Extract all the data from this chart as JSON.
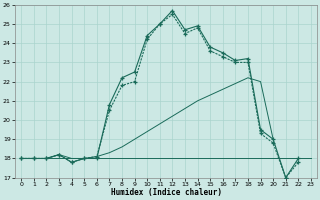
{
  "xlabel": "Humidex (Indice chaleur)",
  "bg_color": "#cce8e4",
  "grid_color": "#aad4ce",
  "line_color": "#1a6b5a",
  "xlim": [
    -0.5,
    23.5
  ],
  "ylim": [
    17,
    26
  ],
  "xticks": [
    0,
    1,
    2,
    3,
    4,
    5,
    6,
    7,
    8,
    9,
    10,
    11,
    12,
    13,
    14,
    15,
    16,
    17,
    18,
    19,
    20,
    21,
    22,
    23
  ],
  "yticks": [
    17,
    18,
    19,
    20,
    21,
    22,
    23,
    24,
    25,
    26
  ],
  "line_flat_x": [
    0,
    1,
    2,
    3,
    4,
    5,
    6,
    7,
    8,
    9,
    10,
    11,
    12,
    13,
    14,
    15,
    16,
    17,
    18,
    19,
    20,
    21,
    22,
    23
  ],
  "line_flat_y": [
    18,
    18,
    18,
    18,
    18,
    18,
    18,
    18,
    18,
    18,
    18,
    18,
    18,
    18,
    18,
    18,
    18,
    18,
    18,
    18,
    18,
    18,
    18,
    18
  ],
  "line_slow_x": [
    0,
    1,
    2,
    3,
    4,
    5,
    6,
    7,
    8,
    9,
    10,
    11,
    12,
    13,
    14,
    15,
    16,
    17,
    18,
    19,
    20
  ],
  "line_slow_y": [
    18,
    18,
    18,
    18.2,
    18,
    18,
    18.1,
    18.3,
    18.6,
    19.0,
    19.4,
    19.8,
    20.2,
    20.6,
    21.0,
    21.3,
    21.6,
    21.9,
    22.2,
    22.0,
    19.0
  ],
  "line_main_solid_x": [
    0,
    1,
    2,
    3,
    4,
    5,
    6,
    7,
    8,
    9,
    10,
    11,
    12,
    13,
    14,
    15,
    16,
    17,
    18,
    19,
    20,
    21,
    22
  ],
  "line_main_solid_y": [
    18,
    18,
    18,
    18.2,
    17.8,
    18.0,
    18.0,
    20.8,
    22.2,
    22.5,
    24.4,
    25.0,
    25.7,
    24.7,
    24.9,
    23.8,
    23.5,
    23.1,
    23.2,
    19.5,
    19.0,
    17.0,
    18.0
  ],
  "line_main_dot_x": [
    0,
    1,
    2,
    3,
    4,
    5,
    6,
    7,
    8,
    9,
    10,
    11,
    12,
    13,
    14,
    15,
    16,
    17,
    18,
    19,
    20,
    21,
    22
  ],
  "line_main_dot_y": [
    18,
    18,
    18,
    18.2,
    17.8,
    18.0,
    18.1,
    20.5,
    21.8,
    22.0,
    24.2,
    25.0,
    25.5,
    24.5,
    24.8,
    23.6,
    23.3,
    23.0,
    23.0,
    19.3,
    18.8,
    17.0,
    17.8
  ]
}
